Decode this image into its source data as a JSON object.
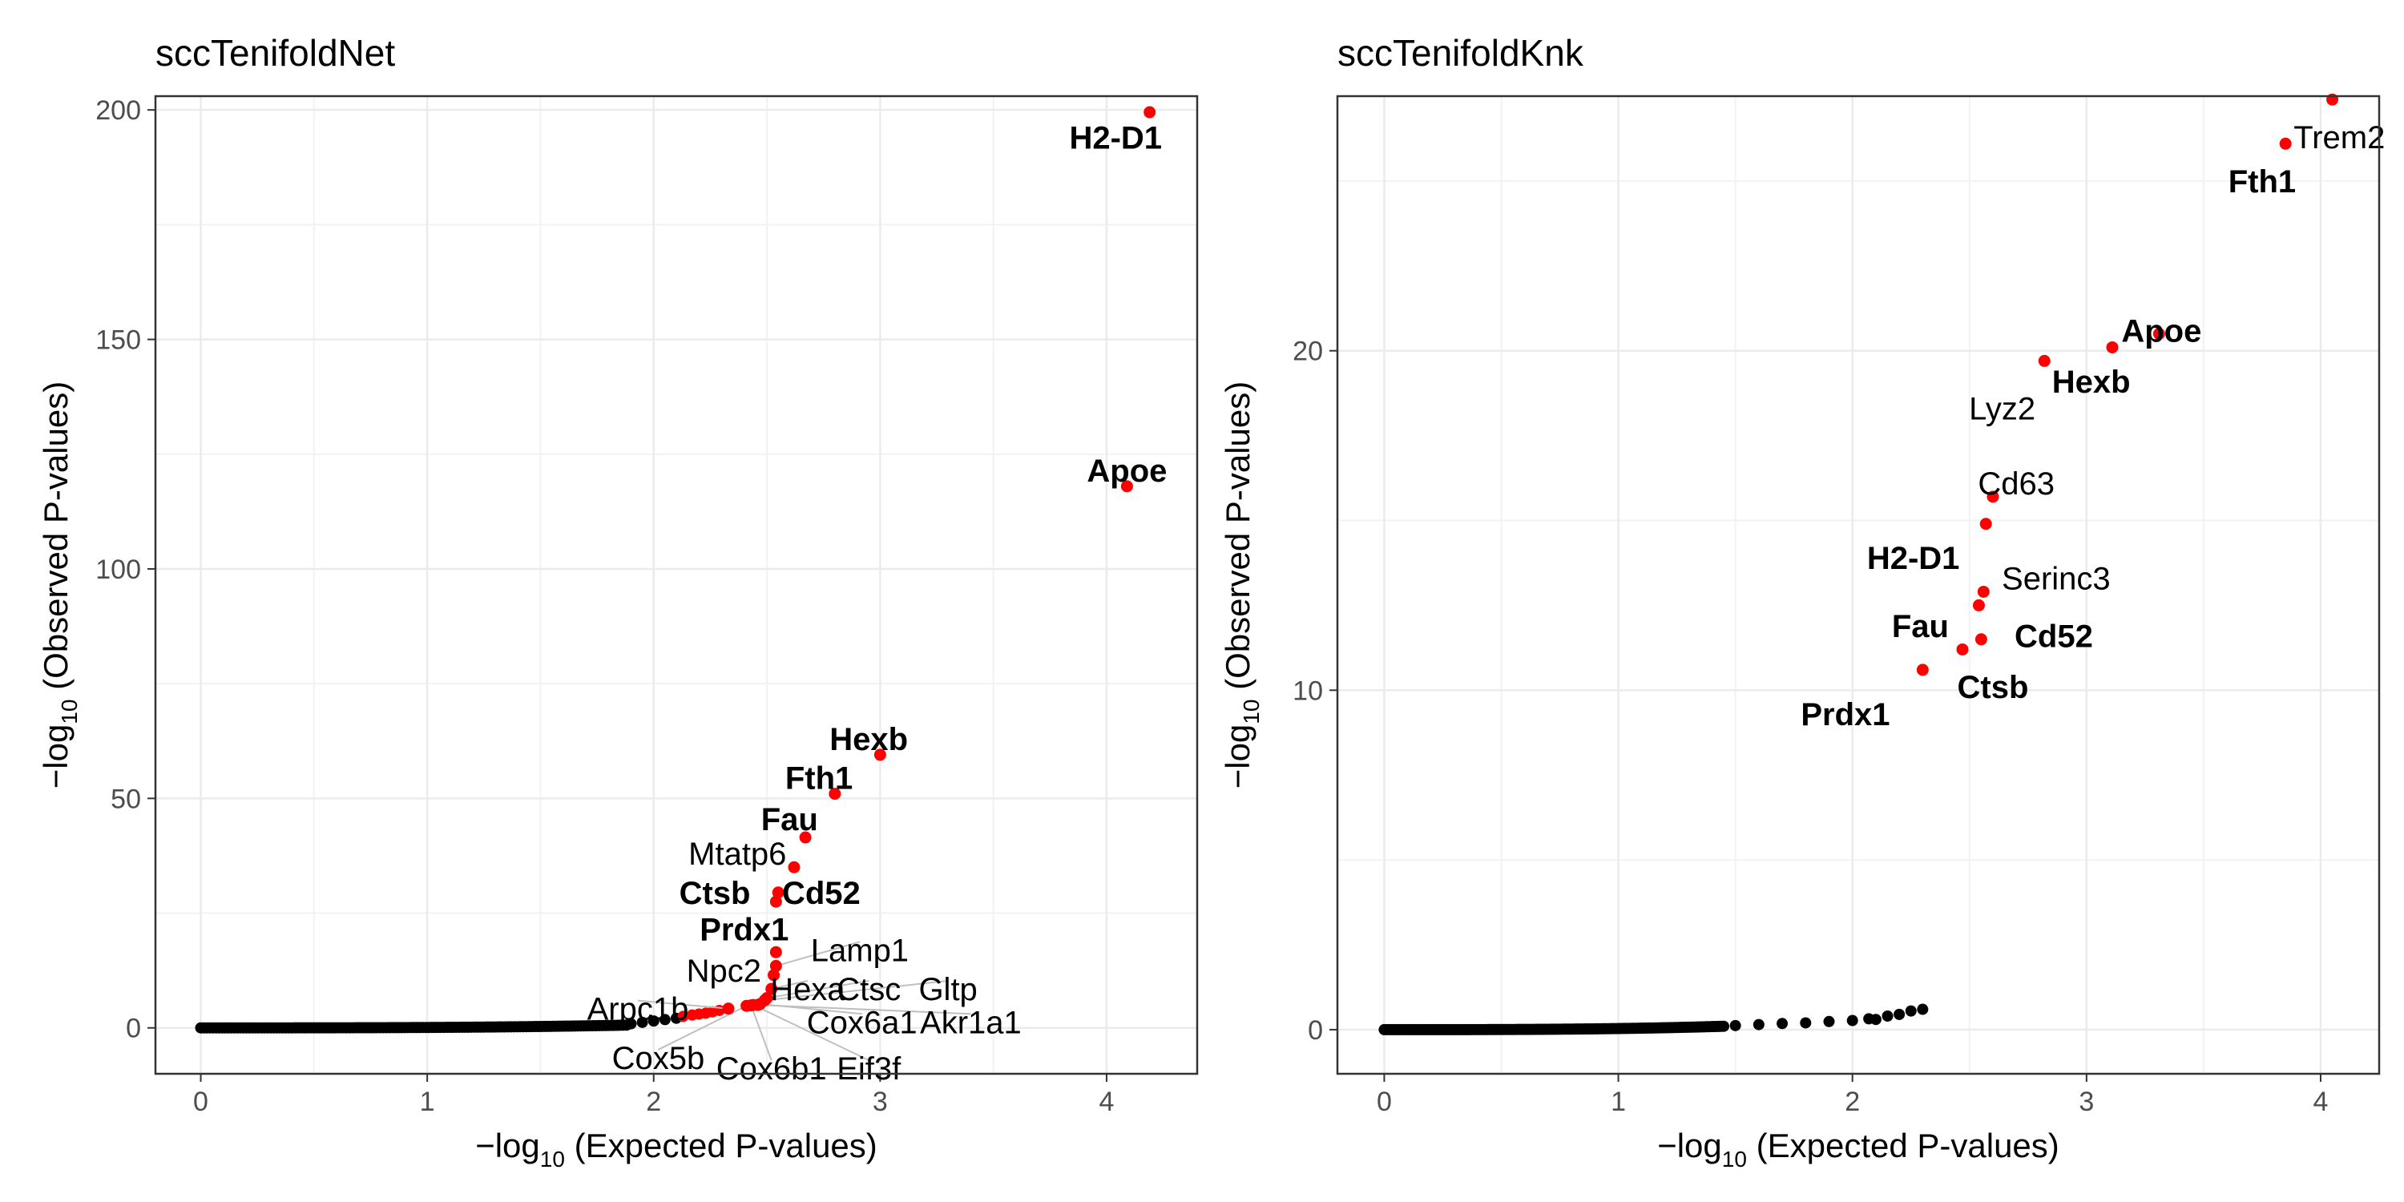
{
  "chart_data": [
    {
      "type": "scatter",
      "title": "sccTenifoldNet",
      "xlabel_prefix": "−log",
      "xlabel_sub": "10",
      "xlabel_rest": " (Expected P-values)",
      "ylabel_prefix": "−log",
      "ylabel_sub": "10",
      "ylabel_rest": " (Observed P-values)",
      "xlim": [
        -0.2,
        4.4
      ],
      "ylim": [
        -10,
        203
      ],
      "x_ticks": [
        0,
        1,
        2,
        3,
        4
      ],
      "x_tick_labels": [
        "0",
        "1",
        "2",
        "3",
        "4"
      ],
      "y_ticks": [
        0,
        50,
        100,
        150,
        200
      ],
      "y_tick_labels": [
        "0",
        "50",
        "100",
        "150",
        "200"
      ],
      "grid": true,
      "colors": {
        "nonsignificant": "#000000",
        "significant": "#ff0000",
        "label_line": "#bfbfbf",
        "grid": "#ebebeb"
      },
      "background_curve": {
        "x_end": 1.88,
        "y_end": 0.6
      },
      "black_tail": [
        [
          1.9,
          0.9
        ],
        [
          1.95,
          1.2
        ],
        [
          2.0,
          1.5
        ],
        [
          2.05,
          1.8
        ],
        [
          2.1,
          2.1
        ]
      ],
      "red_tail": [
        [
          2.13,
          2.5
        ],
        [
          2.17,
          2.8
        ],
        [
          2.2,
          3.0
        ],
        [
          2.23,
          3.2
        ],
        [
          2.26,
          3.5
        ],
        [
          2.29,
          3.8
        ]
      ],
      "highlighted": [
        {
          "label": "H2-D1",
          "x": 4.19,
          "y": 199.5,
          "bold": true,
          "lx": 4.04,
          "ly": 194,
          "anchor": "middle",
          "line": false
        },
        {
          "label": "Apoe",
          "x": 4.09,
          "y": 118,
          "bold": true,
          "lx": 4.09,
          "ly": 121.5,
          "anchor": "middle",
          "line": false
        },
        {
          "label": "Hexb",
          "x": 3.0,
          "y": 59.5,
          "bold": true,
          "lx": 2.95,
          "ly": 63,
          "anchor": "middle",
          "line": false
        },
        {
          "label": "Fth1",
          "x": 2.8,
          "y": 51,
          "bold": true,
          "lx": 2.73,
          "ly": 54.5,
          "anchor": "middle",
          "line": false
        },
        {
          "label": "Fau",
          "x": 2.67,
          "y": 41.5,
          "bold": true,
          "lx": 2.6,
          "ly": 45.5,
          "anchor": "middle",
          "line": false
        },
        {
          "label": "Mtatp6",
          "x": 2.62,
          "y": 35,
          "bold": false,
          "lx": 2.37,
          "ly": 38,
          "anchor": "middle",
          "line": false
        },
        {
          "label": "Cd52",
          "x": 2.55,
          "y": 29.5,
          "bold": true,
          "lx": 2.74,
          "ly": 29.5,
          "anchor": "middle",
          "line": false
        },
        {
          "label": "Ctsb",
          "x": 2.54,
          "y": 27.5,
          "bold": true,
          "lx": 2.27,
          "ly": 29.5,
          "anchor": "middle",
          "line": false
        },
        {
          "label": "Prdx1",
          "x": 2.54,
          "y": 16.5,
          "bold": true,
          "lx": 2.4,
          "ly": 21.5,
          "anchor": "middle",
          "line": false
        },
        {
          "label": "Lamp1",
          "x": 2.54,
          "y": 13.5,
          "bold": false,
          "lx": 2.91,
          "ly": 17,
          "anchor": "middle",
          "line": true
        },
        {
          "label": "Npc2",
          "x": 2.53,
          "y": 11.5,
          "bold": false,
          "lx": 2.31,
          "ly": 12.5,
          "anchor": "middle",
          "line": false
        },
        {
          "label": "Hexa",
          "x": 2.52,
          "y": 8.5,
          "bold": false,
          "lx": 2.68,
          "ly": 8.5,
          "anchor": "middle",
          "line": true
        },
        {
          "label": "Ctsc",
          "x": 2.5,
          "y": 6.5,
          "bold": false,
          "lx": 2.95,
          "ly": 8.5,
          "anchor": "middle",
          "line": true
        },
        {
          "label": "Gltp",
          "x": 2.49,
          "y": 6.0,
          "bold": false,
          "lx": 3.3,
          "ly": 8.5,
          "anchor": "middle",
          "line": true
        },
        {
          "label": "Arpc1b",
          "x": 2.33,
          "y": 4.2,
          "bold": false,
          "lx": 1.93,
          "ly": 4.2,
          "anchor": "middle",
          "line": true
        },
        {
          "label": "Cox6a1",
          "x": 2.47,
          "y": 5.2,
          "bold": false,
          "lx": 2.92,
          "ly": 1.3,
          "anchor": "middle",
          "line": true
        },
        {
          "label": "Akr1a1",
          "x": 2.46,
          "y": 5.0,
          "bold": false,
          "lx": 3.4,
          "ly": 1.3,
          "anchor": "middle",
          "line": true
        },
        {
          "label": "Cox5b",
          "x": 2.41,
          "y": 4.8,
          "bold": false,
          "lx": 2.02,
          "ly": -6.5,
          "anchor": "middle",
          "line": true
        },
        {
          "label": "Cox6b1",
          "x": 2.43,
          "y": 4.9,
          "bold": false,
          "lx": 2.52,
          "ly": -8.8,
          "anchor": "middle",
          "line": true
        },
        {
          "label": "Eif3f",
          "x": 2.44,
          "y": 5.0,
          "bold": false,
          "lx": 2.95,
          "ly": -8.8,
          "anchor": "middle",
          "line": true
        }
      ]
    },
    {
      "type": "scatter",
      "title": "sccTenifoldKnk",
      "xlabel_prefix": "−log",
      "xlabel_sub": "10",
      "xlabel_rest": " (Expected P-values)",
      "ylabel_prefix": "−log",
      "ylabel_sub": "10",
      "ylabel_rest": " (Observed P-values)",
      "xlim": [
        -0.2,
        4.25
      ],
      "ylim": [
        -1.3,
        27.5
      ],
      "x_ticks": [
        0,
        1,
        2,
        3,
        4
      ],
      "x_tick_labels": [
        "0",
        "1",
        "2",
        "3",
        "4"
      ],
      "y_ticks": [
        0,
        10,
        20
      ],
      "y_tick_labels": [
        "0",
        "10",
        "20"
      ],
      "grid": true,
      "colors": {
        "nonsignificant": "#000000",
        "significant": "#ff0000",
        "label_line": "#bfbfbf",
        "grid": "#ebebeb"
      },
      "background_curve": {
        "x_end": 1.45,
        "y_end": 0.1
      },
      "black_tail": [
        [
          1.5,
          0.12
        ],
        [
          1.6,
          0.15
        ],
        [
          1.7,
          0.18
        ],
        [
          1.8,
          0.2
        ],
        [
          1.9,
          0.24
        ],
        [
          2.0,
          0.27
        ],
        [
          2.07,
          0.32
        ],
        [
          2.1,
          0.3
        ],
        [
          2.15,
          0.4
        ],
        [
          2.2,
          0.45
        ],
        [
          2.25,
          0.55
        ],
        [
          2.3,
          0.6
        ]
      ],
      "red_tail": [],
      "highlighted": [
        {
          "label": "Trem2",
          "x": 4.05,
          "y": 27.4,
          "bold": false,
          "lx": 4.08,
          "ly": 26.3,
          "anchor": "middle",
          "line": false
        },
        {
          "label": "Fth1",
          "x": 3.85,
          "y": 26.1,
          "bold": true,
          "lx": 3.75,
          "ly": 25.0,
          "anchor": "middle",
          "line": false
        },
        {
          "label": "Apoe",
          "x": 3.31,
          "y": 20.5,
          "bold": true,
          "lx": 3.32,
          "ly": 20.6,
          "anchor": "middle",
          "line": false
        },
        {
          "label": "Hexb",
          "x": 2.82,
          "y": 19.7,
          "bold": true,
          "lx": 3.02,
          "ly": 19.1,
          "anchor": "middle",
          "line": false
        },
        {
          "label": "Lyz2",
          "x": 3.11,
          "y": 20.1,
          "bold": false,
          "lx": 2.64,
          "ly": 18.3,
          "anchor": "middle",
          "line": false
        },
        {
          "label": "Cd63",
          "x": 2.6,
          "y": 15.7,
          "bold": false,
          "lx": 2.7,
          "ly": 16.1,
          "anchor": "middle",
          "line": false
        },
        {
          "label": "H2-D1",
          "x": 2.57,
          "y": 14.9,
          "bold": true,
          "lx": 2.26,
          "ly": 13.9,
          "anchor": "middle",
          "line": false
        },
        {
          "label": "Serinc3",
          "x": 2.56,
          "y": 12.9,
          "bold": false,
          "lx": 2.87,
          "ly": 13.3,
          "anchor": "middle",
          "line": false
        },
        {
          "label": "Fau",
          "x": 2.54,
          "y": 12.5,
          "bold": true,
          "lx": 2.29,
          "ly": 11.9,
          "anchor": "middle",
          "line": false
        },
        {
          "label": "Cd52",
          "x": 2.55,
          "y": 11.5,
          "bold": true,
          "lx": 2.86,
          "ly": 11.6,
          "anchor": "middle",
          "line": false
        },
        {
          "label": "Ctsb",
          "x": 2.47,
          "y": 11.2,
          "bold": true,
          "lx": 2.6,
          "ly": 10.1,
          "anchor": "middle",
          "line": false
        },
        {
          "label": "Prdx1",
          "x": 2.3,
          "y": 10.6,
          "bold": true,
          "lx": 1.97,
          "ly": 9.3,
          "anchor": "middle",
          "line": false
        }
      ]
    }
  ]
}
